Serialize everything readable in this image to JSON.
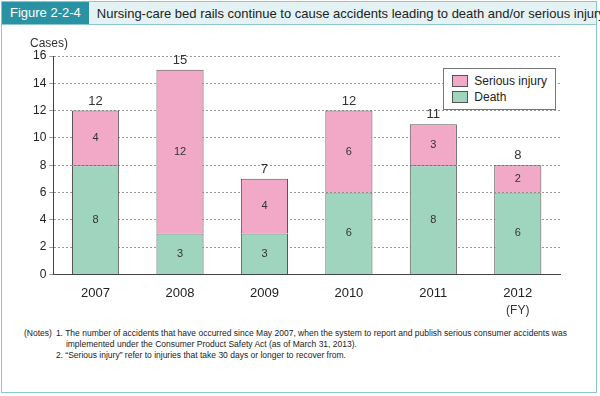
{
  "chart_data": {
    "type": "bar",
    "figure_label": "Figure 2-2-4",
    "title": "Nursing-care bed rails continue to cause accidents leading to death and/or serious injury",
    "y_label": "(Cases)",
    "x_label": "(FY)",
    "categories": [
      "2007",
      "2008",
      "2009",
      "2010",
      "2011",
      "2012"
    ],
    "series": [
      {
        "name": "Death",
        "color": "#9fd5bf",
        "values": [
          8,
          3,
          3,
          6,
          8,
          6
        ]
      },
      {
        "name": "Serious injury",
        "color": "#f2a9c8",
        "values": [
          4,
          12,
          4,
          6,
          3,
          2
        ]
      }
    ],
    "totals": [
      12,
      15,
      7,
      12,
      11,
      8
    ],
    "stacked": true,
    "data_labels": true,
    "legend": "top-right",
    "grid": true,
    "ylim": [
      0,
      16
    ],
    "yticks": [
      0,
      2,
      4,
      6,
      8,
      10,
      12,
      14,
      16
    ],
    "notes_label": "(Notes)",
    "notes": [
      "1. The number of accidents that have occurred since May 2007, when the system to report and publish serious consumer accidents was implemented under the Consumer Product Safety Act (as of March 31, 2013).",
      "2. “Serious injury” refer to injuries that take 30 days or longer to recover from."
    ]
  }
}
